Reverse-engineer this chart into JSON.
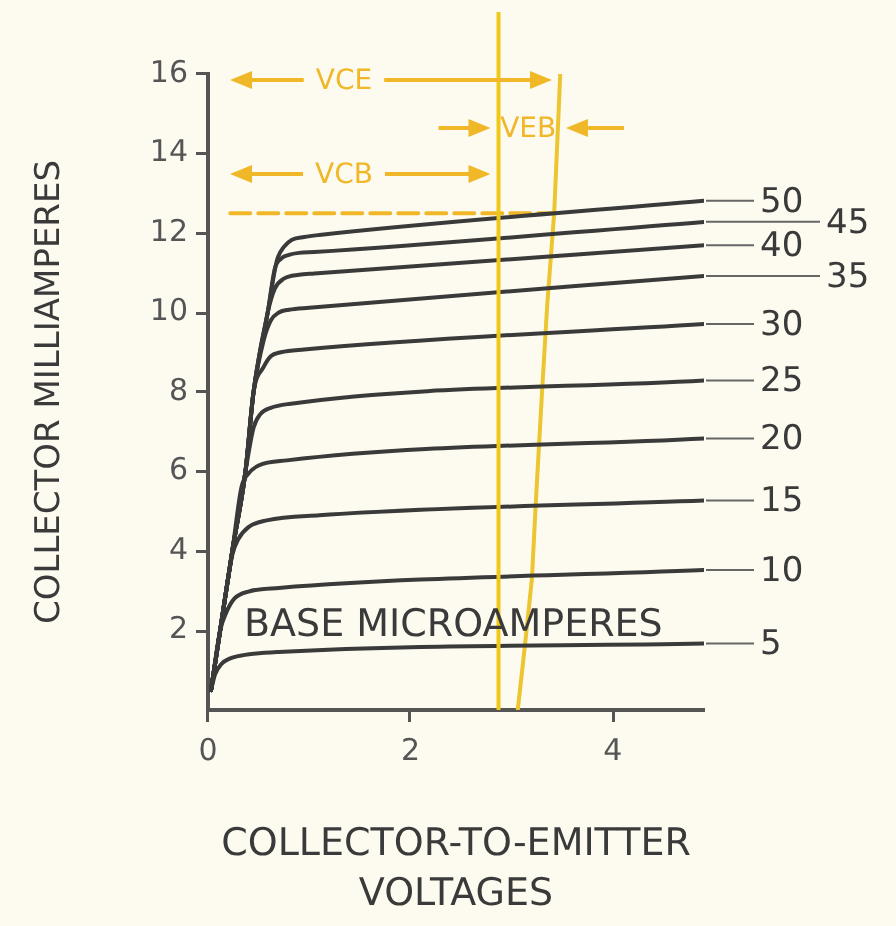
{
  "chart_data": {
    "type": "line",
    "xlabel": "COLLECTOR-TO-EMITTER VOLTAGES",
    "ylabel": "COLLECTOR MILLIAMPERES",
    "xlim": [
      0,
      4.9
    ],
    "xticks": [
      0,
      2,
      4
    ],
    "ylim": [
      0,
      16
    ],
    "yticks": [
      2,
      4,
      6,
      8,
      10,
      12,
      14,
      16
    ],
    "annotations": [
      "VCE",
      "VCB",
      "VEB",
      "BASE MICROAMPERES"
    ],
    "ref_lines": [
      {
        "axis": "x",
        "value": 2.87,
        "color": "#f0c818"
      }
    ],
    "series": [
      {
        "name": "50",
        "color": "#3a3a3a",
        "x": [
          0.03,
          0.12,
          0.24,
          0.37,
          0.45,
          0.59,
          0.68,
          0.75,
          0.83,
          0.95,
          1.1,
          4.9
        ],
        "values": [
          0.5,
          2.0,
          4.0,
          6.0,
          8.0,
          10.0,
          11.3,
          11.65,
          11.83,
          11.9,
          11.95,
          12.81
        ]
      },
      {
        "name": "45",
        "color": "#3a3a3a",
        "x": [
          0.03,
          0.12,
          0.24,
          0.37,
          0.45,
          0.59,
          0.66,
          0.72,
          0.8,
          0.9,
          1.05,
          4.9
        ],
        "values": [
          0.5,
          2.0,
          4.0,
          6.0,
          8.0,
          10.0,
          11.1,
          11.35,
          11.45,
          11.5,
          11.52,
          12.28
        ]
      },
      {
        "name": "40",
        "color": "#3a3a3a",
        "x": [
          0.03,
          0.12,
          0.24,
          0.37,
          0.45,
          0.59,
          0.66,
          0.75,
          0.9,
          1.05,
          4.9
        ],
        "values": [
          0.5,
          2.0,
          4.0,
          6.0,
          8.0,
          10.0,
          10.6,
          10.85,
          10.95,
          10.98,
          11.69
        ]
      },
      {
        "name": "35",
        "color": "#3a3a3a",
        "x": [
          0.03,
          0.12,
          0.24,
          0.37,
          0.45,
          0.55,
          0.62,
          0.7,
          0.8,
          1.0,
          4.9
        ],
        "values": [
          0.5,
          2.0,
          4.0,
          6.0,
          8.0,
          9.3,
          9.8,
          10.0,
          10.07,
          10.12,
          10.92
        ]
      },
      {
        "name": "30",
        "color": "#3a3a3a",
        "x": [
          0.03,
          0.12,
          0.24,
          0.37,
          0.45,
          0.55,
          0.62,
          0.72,
          0.95,
          4.9
        ],
        "values": [
          0.5,
          2.0,
          4.0,
          6.0,
          8.0,
          8.63,
          8.9,
          9.0,
          9.07,
          9.71
        ]
      },
      {
        "name": "25",
        "color": "#3a3a3a",
        "x": [
          0.03,
          0.12,
          0.24,
          0.37,
          0.45,
          0.52,
          0.62,
          0.8,
          4.9
        ],
        "values": [
          0.5,
          2.0,
          4.0,
          6.0,
          7.1,
          7.45,
          7.6,
          7.7,
          8.29
        ]
      },
      {
        "name": "20",
        "color": "#3a3a3a",
        "x": [
          0.03,
          0.12,
          0.24,
          0.33,
          0.4,
          0.5,
          0.78,
          4.9
        ],
        "values": [
          0.5,
          2.0,
          4.0,
          5.6,
          5.95,
          6.15,
          6.28,
          6.83
        ]
      },
      {
        "name": "15",
        "color": "#3a3a3a",
        "x": [
          0.03,
          0.12,
          0.24,
          0.3,
          0.4,
          0.58,
          1.1,
          4.9
        ],
        "values": [
          0.5,
          2.0,
          3.9,
          4.3,
          4.6,
          4.77,
          4.9,
          5.27
        ]
      },
      {
        "name": "10",
        "color": "#3a3a3a",
        "x": [
          0.03,
          0.12,
          0.18,
          0.26,
          0.4,
          0.7,
          4.9
        ],
        "values": [
          0.5,
          2.0,
          2.45,
          2.8,
          2.98,
          3.07,
          3.52
        ]
      },
      {
        "name": "5",
        "color": "#3a3a3a",
        "x": [
          0.03,
          0.07,
          0.13,
          0.22,
          0.35,
          0.7,
          4.9
        ],
        "values": [
          0.5,
          0.9,
          1.15,
          1.3,
          1.38,
          1.46,
          1.67
        ]
      },
      {
        "color": "#ecc530",
        "x": [
          3.48,
          3.42,
          3.35,
          3.3,
          3.24,
          3.2,
          3.13,
          3.06
        ],
        "values": [
          16,
          12.5,
          10.15,
          8.0,
          5.3,
          3.3,
          1.6,
          0
        ]
      },
      {
        "color": "#f0b828",
        "line_style": "dashed",
        "x": [
          0.22,
          3.42
        ],
        "values": [
          12.5,
          12.5
        ]
      }
    ]
  }
}
